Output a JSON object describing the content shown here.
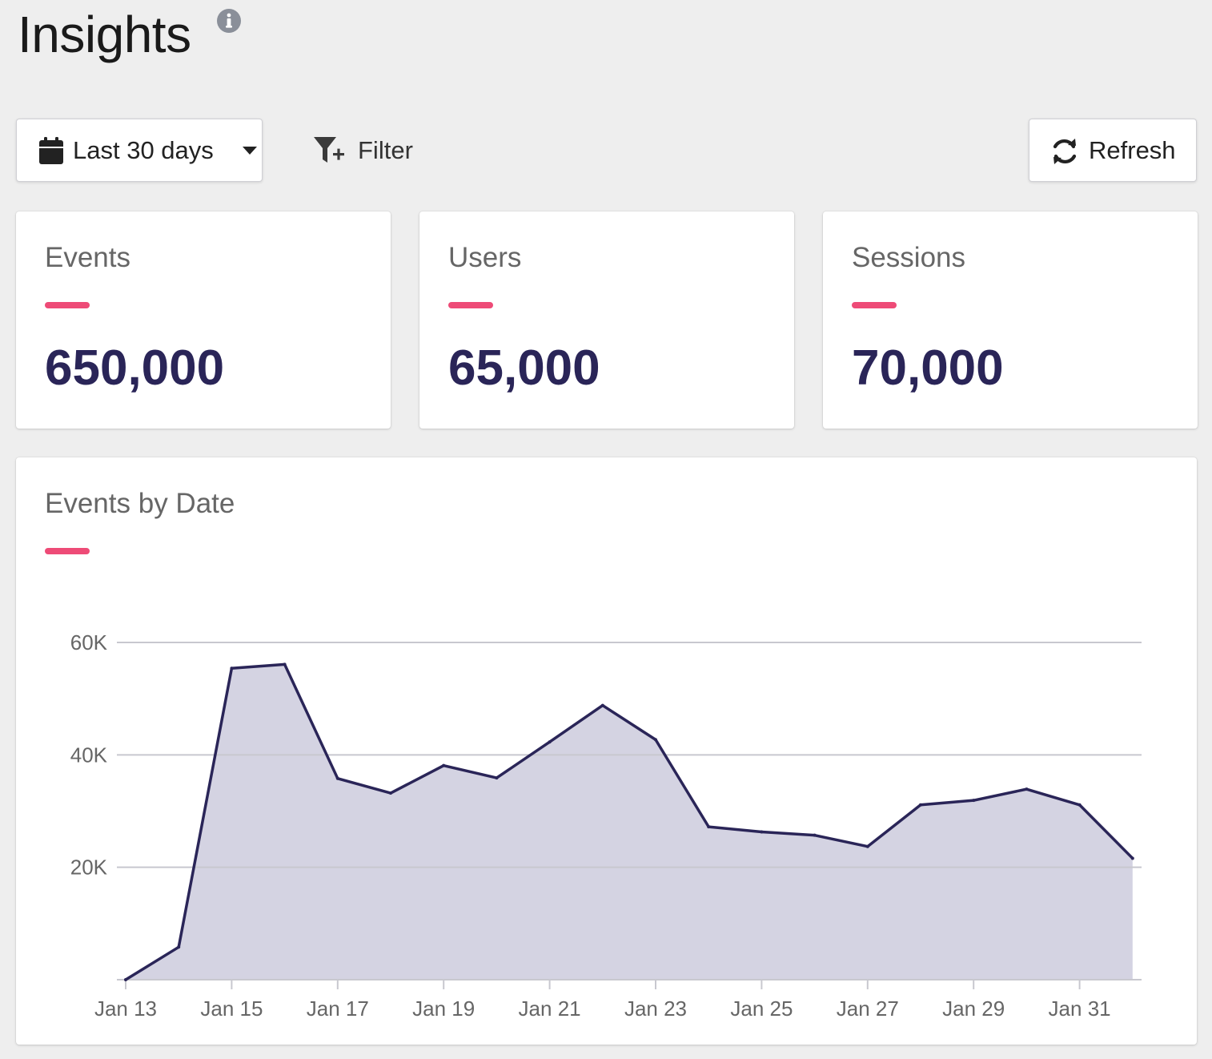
{
  "header": {
    "title": "Insights",
    "info_icon": "info-circle-icon"
  },
  "toolbar": {
    "date_range": {
      "label": "Last 30 days",
      "icon": "calendar-icon",
      "caret": "caret-down-icon"
    },
    "filter": {
      "label": "Filter",
      "icon": "filter-plus-icon"
    },
    "refresh": {
      "label": "Refresh",
      "icon": "refresh-icon"
    }
  },
  "stats": [
    {
      "title": "Events",
      "value": "650,000"
    },
    {
      "title": "Users",
      "value": "65,000"
    },
    {
      "title": "Sessions",
      "value": "70,000"
    }
  ],
  "colors": {
    "accent": "#ee4b77",
    "value_text": "#2a2558",
    "line": "#2a2558",
    "area_fill": "#d4d3e2"
  },
  "chart_data": {
    "type": "area",
    "title": "Events by Date",
    "x": [
      "Jan 13",
      "Jan 14",
      "Jan 15",
      "Jan 16",
      "Jan 17",
      "Jan 18",
      "Jan 19",
      "Jan 20",
      "Jan 21",
      "Jan 22",
      "Jan 23",
      "Jan 24",
      "Jan 25",
      "Jan 26",
      "Jan 27",
      "Jan 28",
      "Jan 29",
      "Jan 30",
      "Jan 31",
      "Feb 1"
    ],
    "x_tick_labels": [
      "Jan 13",
      "Jan 15",
      "Jan 17",
      "Jan 19",
      "Jan 21",
      "Jan 23",
      "Jan 25",
      "Jan 27",
      "Jan 29",
      "Jan 31"
    ],
    "series": [
      {
        "values": [
          0,
          5800,
          55400,
          56100,
          35800,
          33200,
          38100,
          35900,
          42300,
          48800,
          42700,
          27200,
          26300,
          25700,
          23700,
          31100,
          31900,
          33900,
          31100,
          21600
        ]
      }
    ],
    "y_ticks": [
      20000,
      40000,
      60000
    ],
    "y_tick_labels": [
      "20K",
      "40K",
      "60K"
    ],
    "ylim": [
      0,
      60000
    ],
    "grid": true,
    "legend": "none"
  }
}
